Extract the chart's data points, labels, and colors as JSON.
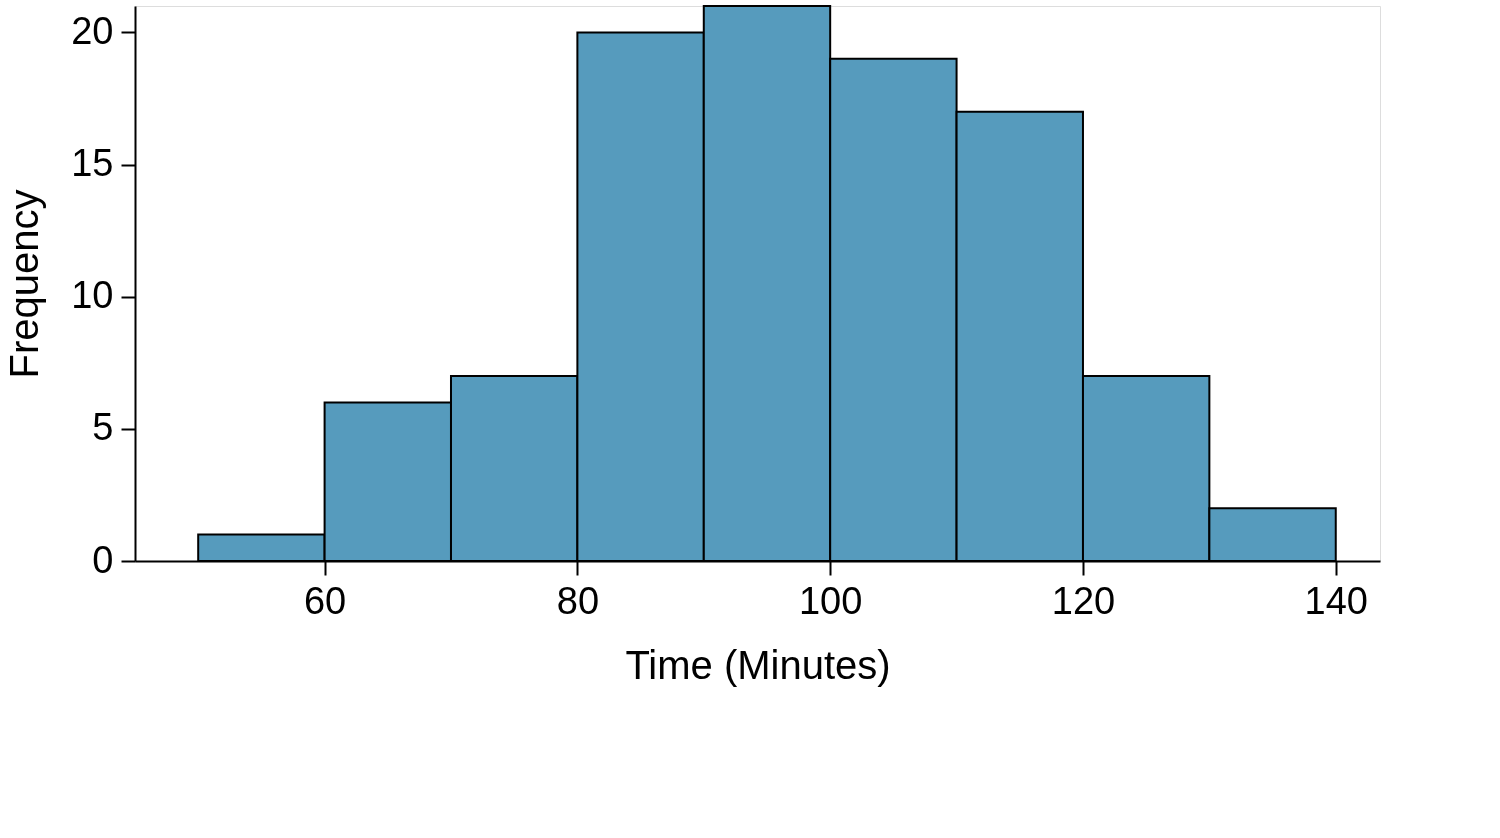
{
  "chart_data": {
    "type": "histogram",
    "xlabel": "Time (Minutes)",
    "ylabel": "Frequency",
    "bins": [
      50,
      60,
      70,
      80,
      90,
      100,
      110,
      120,
      130,
      140
    ],
    "values": [
      1,
      6,
      7,
      20,
      21,
      19,
      17,
      7,
      2
    ],
    "color": "#569bbd",
    "xlim": [
      45,
      143.5
    ],
    "xticks": [
      60,
      80,
      100,
      120,
      140
    ],
    "ylim": [
      0,
      21
    ],
    "yticks": [
      0,
      5,
      10,
      15,
      20
    ],
    "grid": false
  }
}
